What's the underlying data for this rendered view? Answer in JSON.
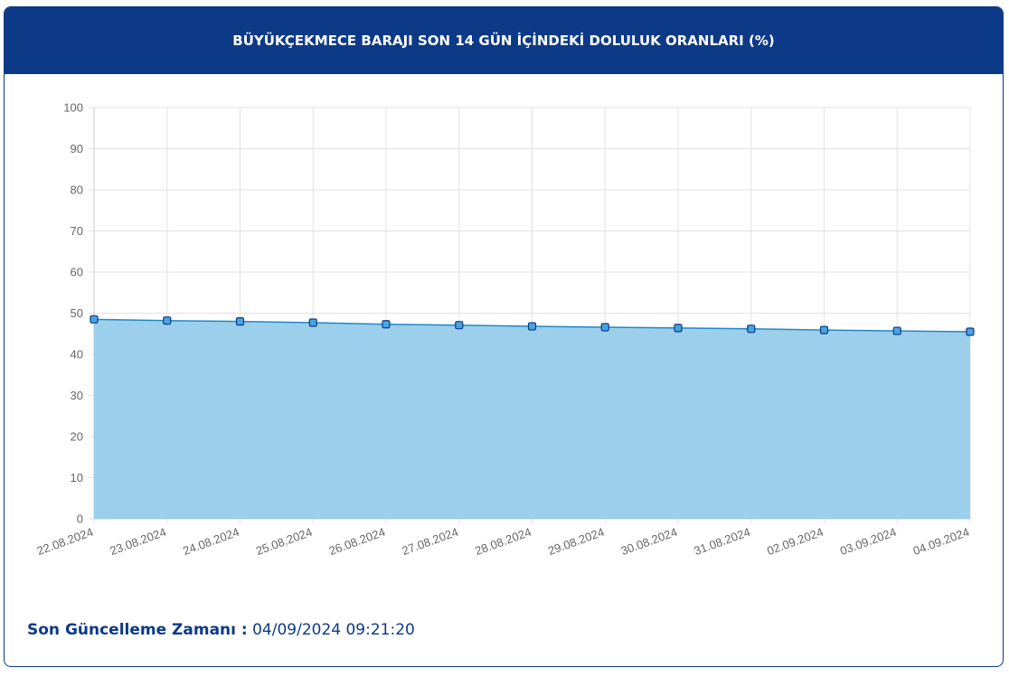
{
  "chart_data": {
    "type": "area",
    "title": "BÜYÜKÇEKMECE BARAJI SON 14 GÜN İÇİNDEKİ DOLULUK ORANLARI (%)",
    "categories": [
      "22.08.2024",
      "23.08.2024",
      "24.08.2024",
      "25.08.2024",
      "26.08.2024",
      "27.08.2024",
      "28.08.2024",
      "29.08.2024",
      "30.08.2024",
      "31.08.2024",
      "02.09.2024",
      "03.09.2024",
      "04.09.2024"
    ],
    "values": [
      48.5,
      48.2,
      48.0,
      47.7,
      47.3,
      47.1,
      46.8,
      46.6,
      46.4,
      46.2,
      45.9,
      45.7,
      45.5
    ],
    "color": "#1f88c9",
    "fill_color": "#9ccfeb",
    "ylim": [
      0,
      100
    ],
    "yticks": [
      0,
      10,
      20,
      30,
      40,
      50,
      60,
      70,
      80,
      90,
      100
    ],
    "grid": true
  },
  "footer": {
    "label": "Son Güncelleme Zamanı :",
    "value": "04/09/2024 09:21:20"
  }
}
